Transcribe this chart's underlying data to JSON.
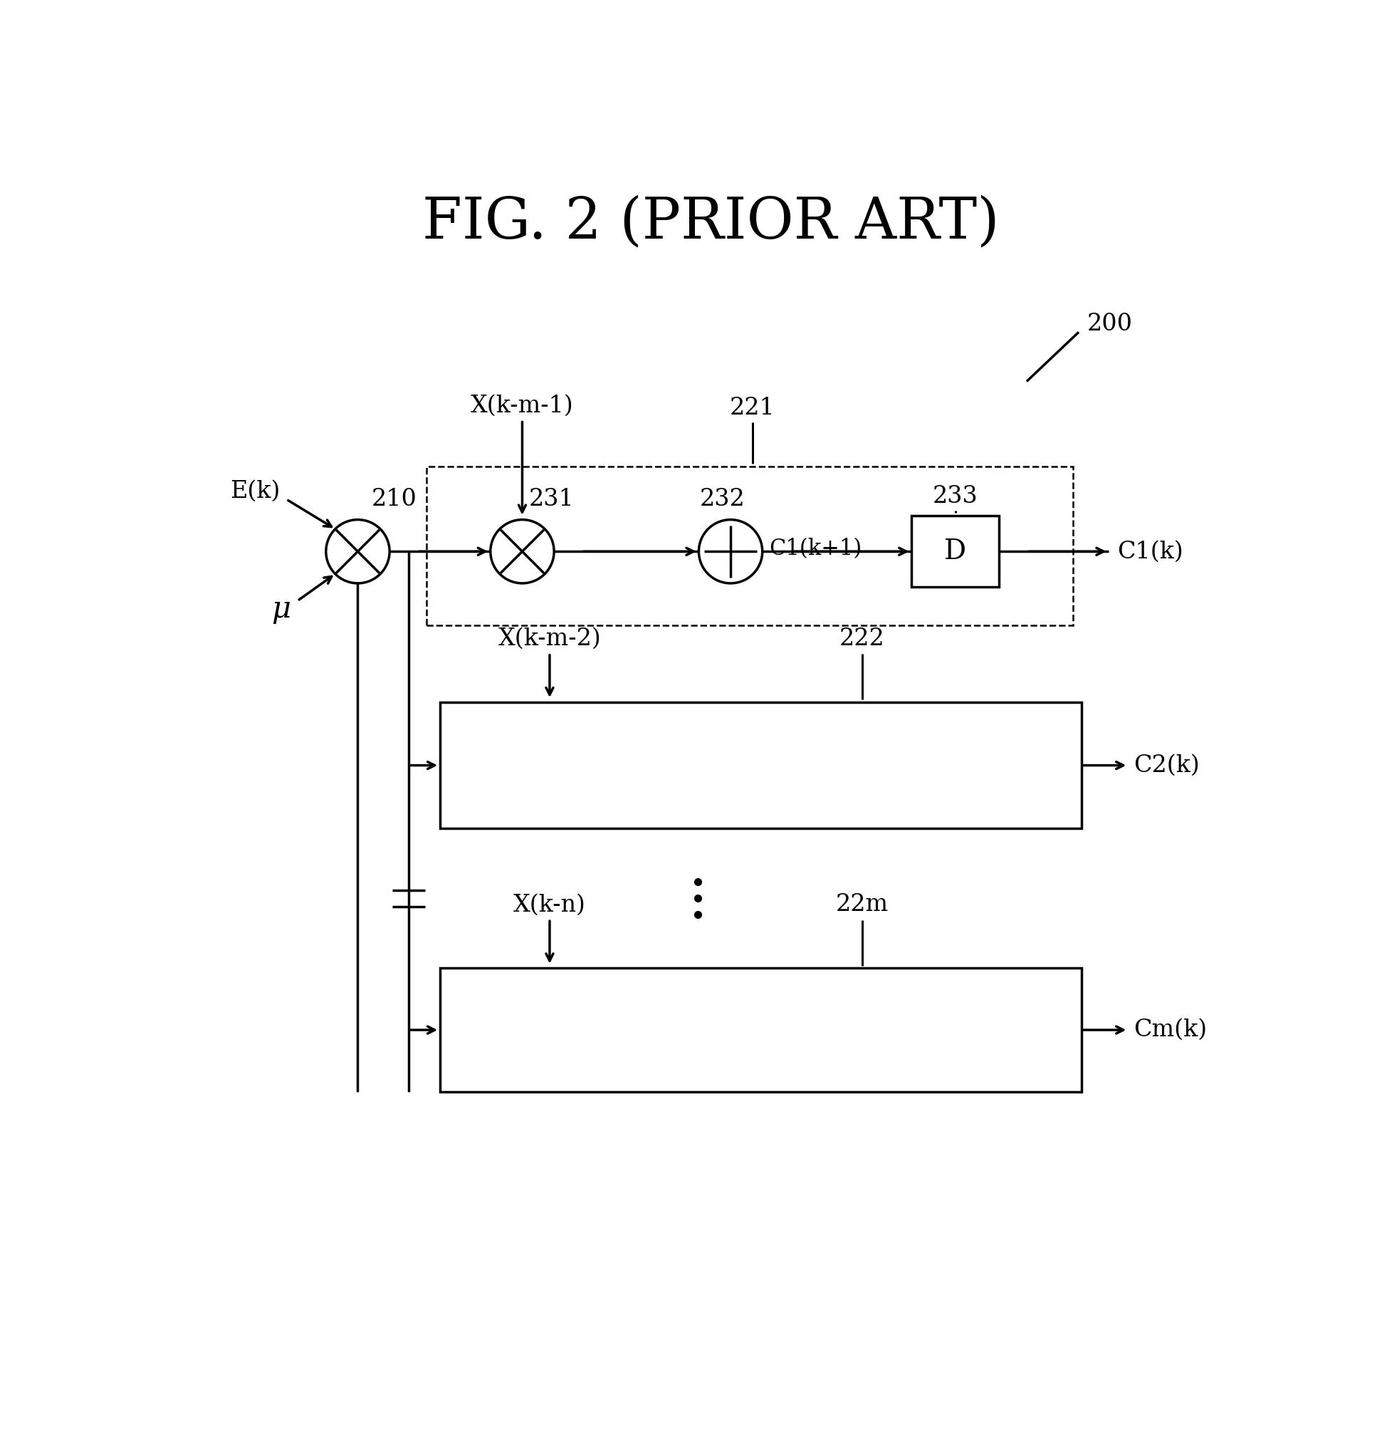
{
  "title": "FIG. 2 (PRIOR ART)",
  "bg_color": "#ffffff",
  "line_color": "#000000",
  "title_fontsize": 58,
  "label_fontsize": 24,
  "ref_num_fontsize": 24,
  "label_200": "200",
  "label_210": "210",
  "label_221": "221",
  "label_231": "231",
  "label_232": "232",
  "label_233": "233",
  "label_222": "222",
  "label_22m": "22m",
  "label_Ek": "E(k)",
  "label_mu": "μ",
  "label_Xkmm1": "X(k-m-1)",
  "label_Xkmm2": "X(k-m-2)",
  "label_Xkn": "X(k-n)",
  "label_C1k1": "C1(k+1)",
  "label_C1k": "C1(k)",
  "label_C2k": "C2(k)",
  "label_Cmk": "Cm(k)",
  "label_D": "D"
}
